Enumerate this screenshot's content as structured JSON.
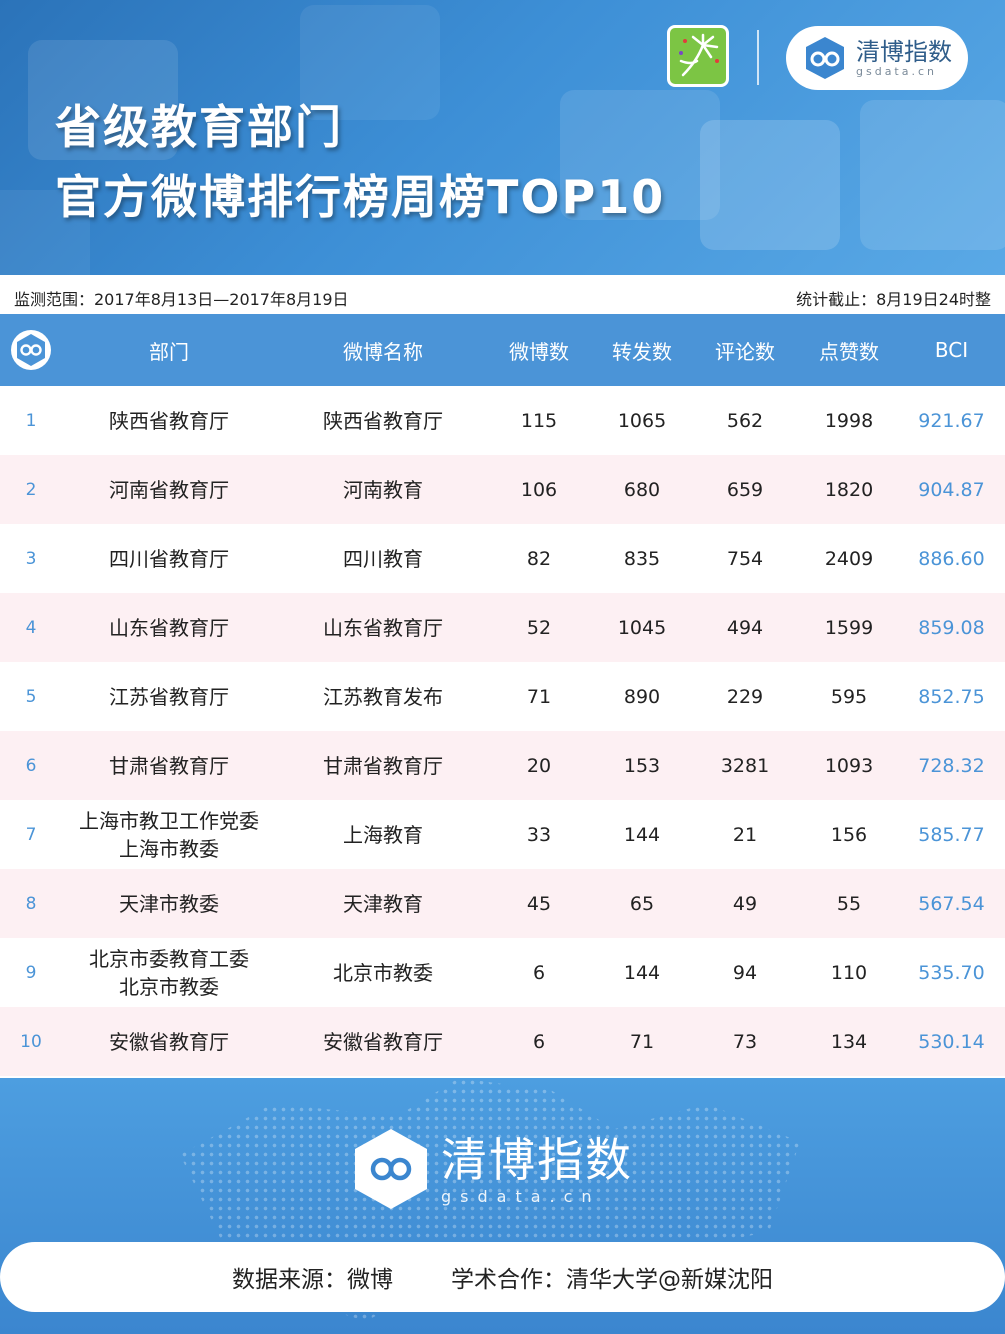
{
  "banner": {
    "title_line1": "省级教育部门",
    "title_line2": "官方微博排行榜周榜TOP10",
    "brand_name": "清博指数",
    "brand_domain": "gsdata.cn"
  },
  "meta": {
    "range": "监测范围：2017年8月13日—2017年8月19日",
    "cutoff": "统计截止：8月19日24时整"
  },
  "table": {
    "headers": {
      "dept": "部门",
      "name": "微博名称",
      "posts": "微博数",
      "forwards": "转发数",
      "comments": "评论数",
      "likes": "点赞数",
      "bci": "BCI"
    },
    "rows": [
      {
        "rank": "1",
        "dept1": "陕西省教育厅",
        "dept2": "",
        "name": "陕西省教育厅",
        "posts": "115",
        "forwards": "1065",
        "comments": "562",
        "likes": "1998",
        "bci": "921.67"
      },
      {
        "rank": "2",
        "dept1": "河南省教育厅",
        "dept2": "",
        "name": "河南教育",
        "posts": "106",
        "forwards": "680",
        "comments": "659",
        "likes": "1820",
        "bci": "904.87"
      },
      {
        "rank": "3",
        "dept1": "四川省教育厅",
        "dept2": "",
        "name": "四川教育",
        "posts": "82",
        "forwards": "835",
        "comments": "754",
        "likes": "2409",
        "bci": "886.60"
      },
      {
        "rank": "4",
        "dept1": "山东省教育厅",
        "dept2": "",
        "name": "山东省教育厅",
        "posts": "52",
        "forwards": "1045",
        "comments": "494",
        "likes": "1599",
        "bci": "859.08"
      },
      {
        "rank": "5",
        "dept1": "江苏省教育厅",
        "dept2": "",
        "name": "江苏教育发布",
        "posts": "71",
        "forwards": "890",
        "comments": "229",
        "likes": "595",
        "bci": "852.75"
      },
      {
        "rank": "6",
        "dept1": "甘肃省教育厅",
        "dept2": "",
        "name": "甘肃省教育厅",
        "posts": "20",
        "forwards": "153",
        "comments": "3281",
        "likes": "1093",
        "bci": "728.32"
      },
      {
        "rank": "7",
        "dept1": "上海市教卫工作党委",
        "dept2": "上海市教委",
        "name": "上海教育",
        "posts": "33",
        "forwards": "144",
        "comments": "21",
        "likes": "156",
        "bci": "585.77"
      },
      {
        "rank": "8",
        "dept1": "天津市教委",
        "dept2": "",
        "name": "天津教育",
        "posts": "45",
        "forwards": "65",
        "comments": "49",
        "likes": "55",
        "bci": "567.54"
      },
      {
        "rank": "9",
        "dept1": "北京市委教育工委",
        "dept2": "北京市教委",
        "name": "北京市教委",
        "posts": "6",
        "forwards": "144",
        "comments": "94",
        "likes": "110",
        "bci": "535.70"
      },
      {
        "rank": "10",
        "dept1": "安徽省教育厅",
        "dept2": "",
        "name": "安徽省教育厅",
        "posts": "6",
        "forwards": "71",
        "comments": "73",
        "likes": "134",
        "bci": "530.14"
      }
    ]
  },
  "footer": {
    "brand_name": "清博指数",
    "brand_domain": "gsdata.cn",
    "source": "数据来源：微博",
    "cooperation": "学术合作：清华大学@新媒沈阳"
  },
  "colors": {
    "accent": "#4b94d7",
    "row_alt": "#fdf0f3",
    "banner": "#3d8fd6",
    "app_logo": "#7cc544"
  }
}
